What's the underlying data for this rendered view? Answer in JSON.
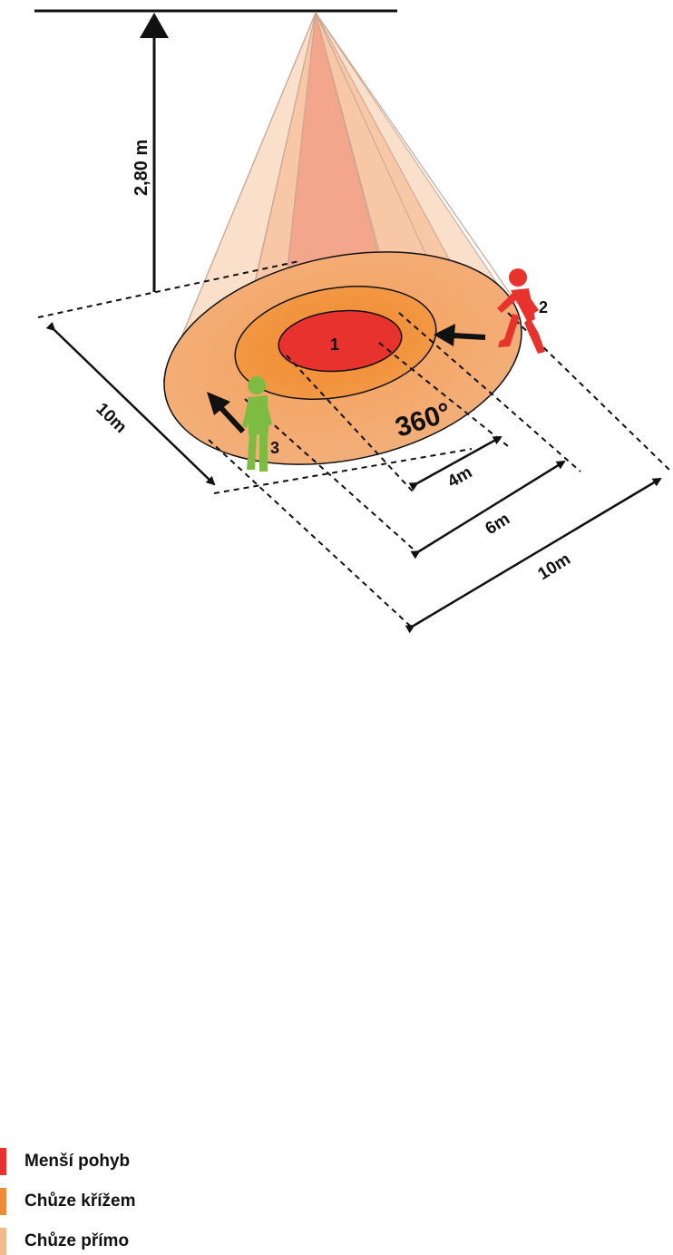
{
  "labels": {
    "height": "2,80 m",
    "zone1": "1",
    "person2": "2",
    "person3": "3",
    "angle": "360°",
    "dim_left": "10m",
    "dim_4m": "4m",
    "dim_6m": "6m",
    "dim_10m": "10m"
  },
  "legend": [
    {
      "label": "Menší pohyb",
      "color": "#e8322d"
    },
    {
      "label": "Chůze křížem",
      "color": "#ef8a3a"
    },
    {
      "label": "Chůze přímo",
      "color": "#f4b98a"
    }
  ],
  "colors": {
    "zone_inner": "#e8322d",
    "zone_mid": "#ef8a3a",
    "zone_outer": "#f4b98a",
    "person_red": "#e8322d",
    "person_green": "#7dbb42"
  }
}
